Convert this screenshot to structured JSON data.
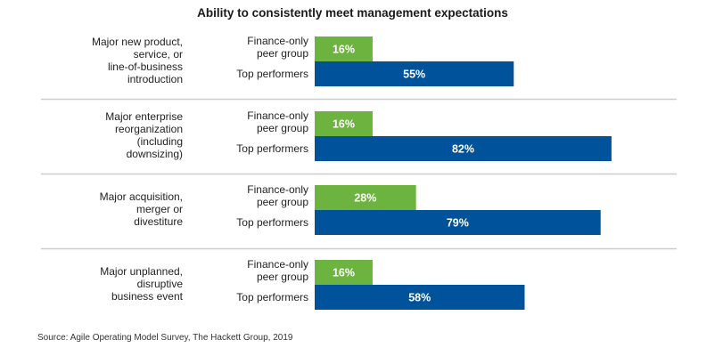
{
  "chart_data": {
    "type": "bar",
    "orientation": "horizontal",
    "title": "Ability to consistently meet management expectations",
    "xlabel": "",
    "ylabel": "",
    "xlim": [
      0,
      100
    ],
    "grid": false,
    "legend": "none (series labels beside each bar)",
    "categories": [
      [
        "Major new product,",
        "service, or",
        "line-of-business",
        "introduction"
      ],
      [
        "Major enterprise",
        "reorganization",
        "(including",
        "downsizing)"
      ],
      [
        "Major acquisition,",
        "merger or",
        "divestiture"
      ],
      [
        "Major unplanned,",
        "disruptive",
        "business event"
      ]
    ],
    "series": [
      {
        "name": "Finance-only peer group",
        "label_lines": [
          "Finance-only",
          "peer group"
        ],
        "color": "#6db33f",
        "values": [
          16,
          16,
          28,
          16
        ]
      },
      {
        "name": "Top performers",
        "label_lines": [
          "Top performers"
        ],
        "color": "#00539b",
        "values": [
          55,
          82,
          79,
          58
        ]
      }
    ],
    "value_suffix": "%",
    "separator_color": "#c9ccd1"
  },
  "source": "Source: Agile Operating Model Survey, The Hackett Group, 2019"
}
